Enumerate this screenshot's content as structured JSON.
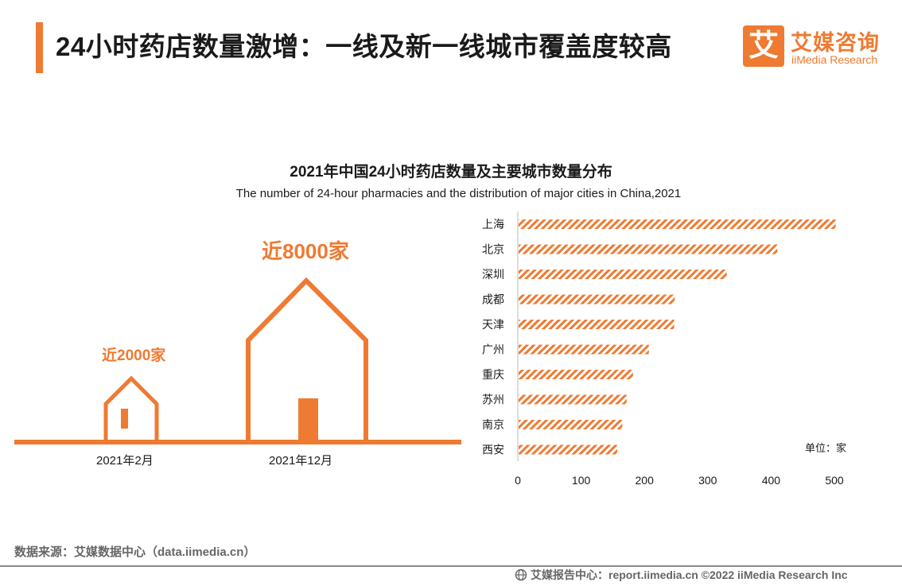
{
  "header": {
    "title": "24小时药店数量激增：一线及新一线城市覆盖度较高",
    "logo_mark": "艾",
    "logo_cn": "艾媒咨询",
    "logo_en": "iiMedia Research"
  },
  "colors": {
    "accent": "#ef7a31",
    "text": "#1a1a1a",
    "muted": "#666666"
  },
  "infographic": {
    "small_house": {
      "label": "近2000家",
      "date": "2021年2月",
      "icon": "house-icon"
    },
    "large_house": {
      "label": "近8000家",
      "date": "2021年12月",
      "icon": "house-icon"
    }
  },
  "chart_data": {
    "type": "bar",
    "orientation": "horizontal",
    "title": "2021年中国24小时药店数量及主要城市数量分布",
    "subtitle": "The number of 24-hour pharmacies and the distribution of major cities in China,2021",
    "categories": [
      "上海",
      "北京",
      "深圳",
      "成都",
      "天津",
      "广州",
      "重庆",
      "苏州",
      "南京",
      "西安"
    ],
    "values": [
      502,
      410,
      330,
      248,
      247,
      207,
      182,
      172,
      165,
      157
    ],
    "x_ticks": [
      0,
      100,
      200,
      300,
      400,
      500
    ],
    "xlim": [
      0,
      500
    ],
    "unit_label": "单位：家",
    "bar_pattern": "diagonal-hatch"
  },
  "source": "数据来源：艾媒数据中心（data.iimedia.cn）",
  "footer": {
    "icon": "globe-icon",
    "text": "艾媒报告中心：report.iimedia.cn  ©2022  iiMedia Research Inc"
  }
}
